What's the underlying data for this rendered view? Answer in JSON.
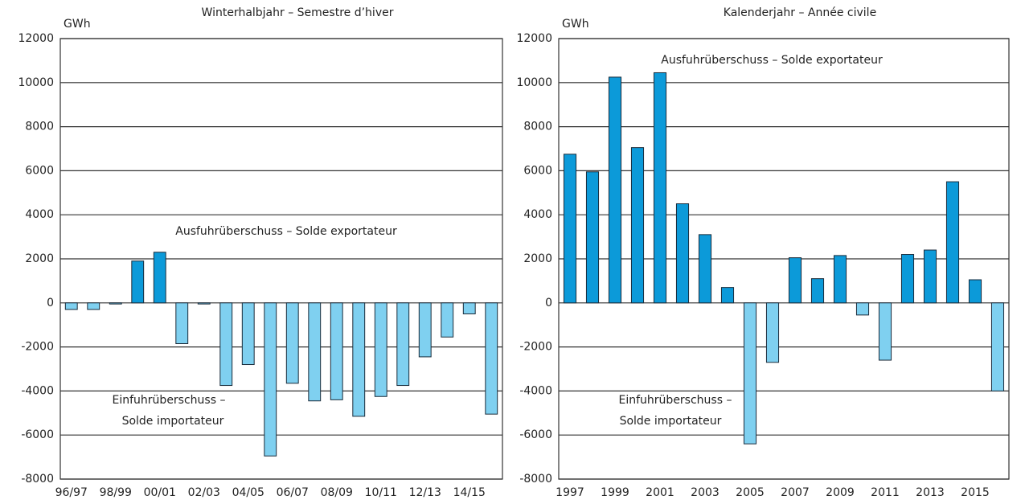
{
  "chart_data": [
    {
      "type": "bar",
      "title": "Winterhalbjahr – Semestre d’hiver",
      "y_label": "GWh",
      "categories": [
        "96/97",
        null,
        "98/99",
        null,
        "00/01",
        null,
        "02/03",
        null,
        "04/05",
        null,
        "06/07",
        null,
        "08/09",
        null,
        "10/11",
        null,
        "12/13",
        null,
        "14/15",
        null
      ],
      "values": [
        -300,
        -300,
        -50,
        1900,
        2300,
        -1850,
        -50,
        -3750,
        -2800,
        -6950,
        -3650,
        -4450,
        -4400,
        -5150,
        -4250,
        -3750,
        -2450,
        -1550,
        -500,
        -5050
      ],
      "positive_color": "#0c9ad9",
      "negative_color": "#7fd0f0",
      "annotations": [
        "Ausfuhrüberschuss – Solde exportateur",
        "Einfuhrüberschuss –",
        "Solde importateur"
      ],
      "ylim": [
        -8000,
        12000
      ],
      "yticks": [
        -8000,
        -6000,
        -4000,
        -2000,
        0,
        2000,
        4000,
        6000,
        8000,
        10000,
        12000
      ],
      "grid": true
    },
    {
      "type": "bar",
      "title": "Kalenderjahr – Année civile",
      "y_label": "GWh",
      "categories": [
        "1997",
        null,
        "1999",
        null,
        "2001",
        null,
        "2003",
        null,
        "2005",
        null,
        "2007",
        null,
        "2009",
        null,
        "2011",
        null,
        "2013",
        null,
        "2015",
        null
      ],
      "values": [
        6750,
        5950,
        10250,
        7050,
        10450,
        4500,
        3100,
        700,
        -6400,
        -2700,
        2050,
        1100,
        2150,
        -550,
        -2600,
        2200,
        2400,
        5500,
        1050,
        -4000
      ],
      "positive_color": "#0c9ad9",
      "negative_color": "#7fd0f0",
      "annotations": [
        "Ausfuhrüberschuss – Solde exportateur",
        "Einfuhrüberschuss –",
        "Solde importateur"
      ],
      "ylim": [
        -8000,
        12000
      ],
      "yticks": [
        -8000,
        -6000,
        -4000,
        -2000,
        0,
        2000,
        4000,
        6000,
        8000,
        10000,
        12000
      ],
      "grid": true
    }
  ]
}
